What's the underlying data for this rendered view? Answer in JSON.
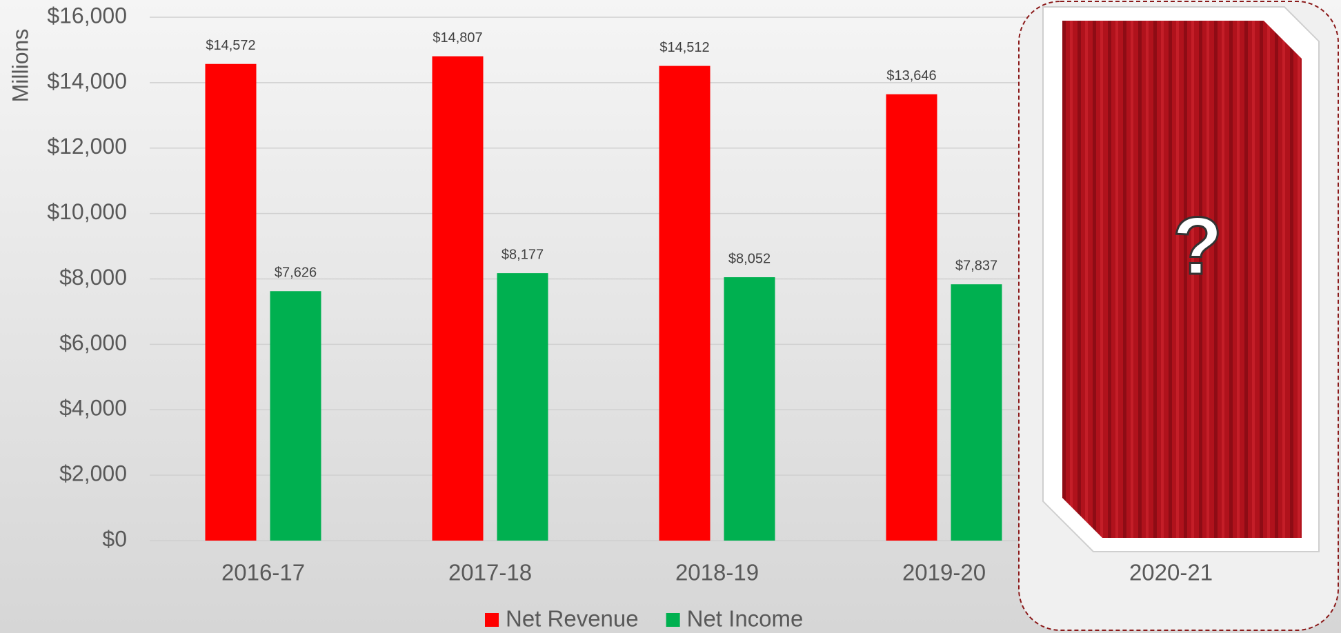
{
  "chart_data": {
    "type": "bar",
    "y_label": "Millions",
    "categories": [
      "2016-17",
      "2017-18",
      "2018-19",
      "2019-20",
      "2020-21"
    ],
    "series": [
      {
        "name": "Net Revenue",
        "color": "#ff0000",
        "values": [
          14572,
          14807,
          14512,
          13646,
          null
        ],
        "value_labels": [
          "$14,572",
          "$14,807",
          "$14,512",
          "$13,646",
          null
        ]
      },
      {
        "name": "Net Income",
        "color": "#00b050",
        "values": [
          7626,
          8177,
          8052,
          7837,
          null
        ],
        "value_labels": [
          "$7,626",
          "$8,177",
          "$8,052",
          "$7,837",
          null
        ]
      }
    ],
    "ylim": [
      0,
      16000
    ],
    "yticks": [
      {
        "value": 0,
        "label": "$0"
      },
      {
        "value": 2000,
        "label": "$2,000"
      },
      {
        "value": 4000,
        "label": "$4,000"
      },
      {
        "value": 6000,
        "label": "$6,000"
      },
      {
        "value": 8000,
        "label": "$8,000"
      },
      {
        "value": 10000,
        "label": "$10,000"
      },
      {
        "value": 12000,
        "label": "$12,000"
      },
      {
        "value": 14000,
        "label": "$14,000"
      },
      {
        "value": 16000,
        "label": "$16,000"
      }
    ],
    "grid": true,
    "annotation": "?"
  }
}
